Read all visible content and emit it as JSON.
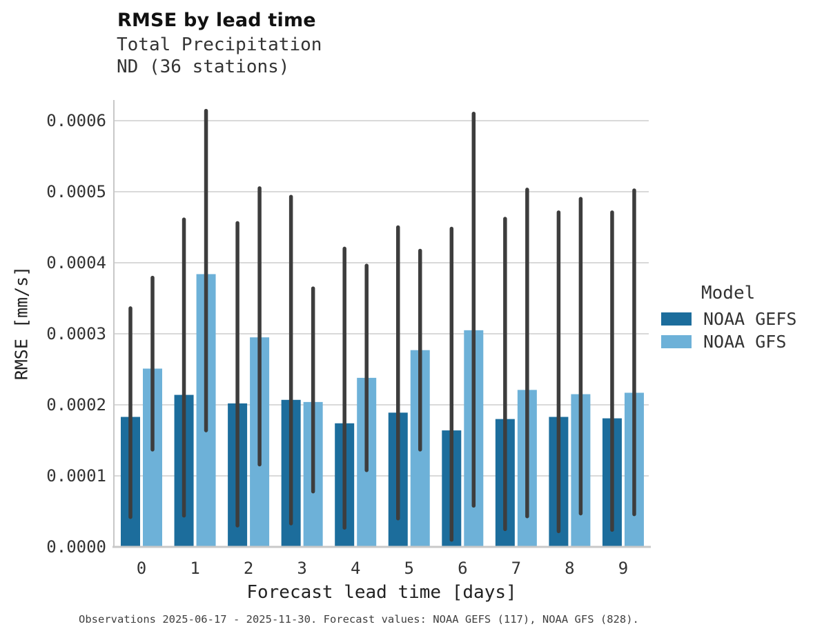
{
  "header": {
    "title": "RMSE by lead time",
    "subtitle_line1": "Total Precipitation",
    "subtitle_line2": "ND (36 stations)"
  },
  "legend": {
    "title": "Model",
    "entries": [
      {
        "label": "NOAA GEFS",
        "color": "#1c6d9c"
      },
      {
        "label": "NOAA GFS",
        "color": "#6db1d8"
      }
    ]
  },
  "footer": {
    "caption": "Observations 2025-06-17 - 2025-11-30. Forecast values: NOAA GEFS (117), NOAA GFS (828)."
  },
  "colors": {
    "bar_dark_blue": "#1c6d9c",
    "bar_light_blue": "#6db1d8",
    "error_bar": "#3d3d3d",
    "gridline": "#d9d9d9",
    "axis_line": "#c8c8c8",
    "text_dark": "#111111",
    "text_gray": "#333333"
  },
  "chart_data": {
    "type": "bar",
    "title": "RMSE by lead time",
    "subtitle": [
      "Total Precipitation",
      "ND (36 stations)"
    ],
    "xlabel": "Forecast lead time [days]",
    "ylabel": "RMSE [mm/s]",
    "categories": [
      "0",
      "1",
      "2",
      "3",
      "4",
      "5",
      "6",
      "7",
      "8",
      "9"
    ],
    "ylim": [
      0,
      0.00063
    ],
    "ytick_step": 0.0001,
    "ytick_decimals": 4,
    "grid": true,
    "legend_position": "right",
    "legend_title": "Model",
    "error_bar_color": "#3d3d3d",
    "series": [
      {
        "name": "NOAA GEFS",
        "color": "#1c6d9c",
        "values": [
          0.000183,
          0.000214,
          0.000202,
          0.000207,
          0.000174,
          0.000189,
          0.000164,
          0.00018,
          0.000183,
          0.000181
        ],
        "error_low": [
          4.2e-05,
          4.4e-05,
          3e-05,
          3.3e-05,
          2.7e-05,
          4e-05,
          1e-05,
          2.5e-05,
          2.2e-05,
          2.4e-05
        ],
        "error_high": [
          0.000336,
          0.000461,
          0.000456,
          0.000493,
          0.00042,
          0.00045,
          0.000448,
          0.000462,
          0.000471,
          0.000471
        ]
      },
      {
        "name": "NOAA GFS",
        "color": "#6db1d8",
        "values": [
          0.000251,
          0.000384,
          0.000295,
          0.000204,
          0.000238,
          0.000277,
          0.000305,
          0.000221,
          0.000215,
          0.000217
        ],
        "error_low": [
          0.000137,
          0.000164,
          0.000116,
          7.8e-05,
          0.000108,
          0.000137,
          5.8e-05,
          4.3e-05,
          4.7e-05,
          4.6e-05
        ],
        "error_high": [
          0.000379,
          0.000614,
          0.000505,
          0.000364,
          0.000396,
          0.000417,
          0.00061,
          0.000503,
          0.00049,
          0.000502
        ]
      }
    ]
  }
}
